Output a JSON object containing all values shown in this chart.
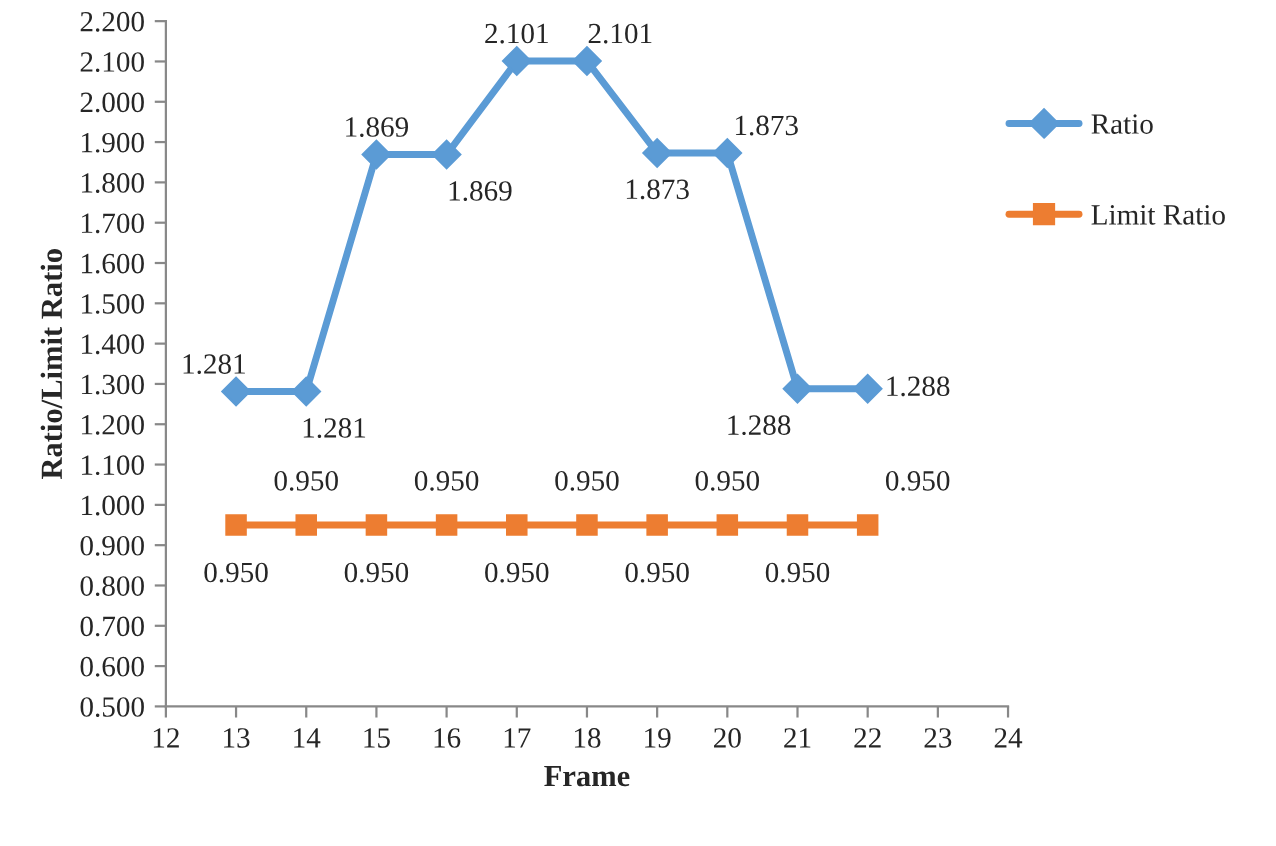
{
  "chart_data": {
    "type": "line",
    "xlabel": "Frame",
    "ylabel": "Ratio/Limit Ratio",
    "x": [
      13,
      14,
      15,
      16,
      17,
      18,
      19,
      20,
      21,
      22
    ],
    "series": [
      {
        "name": "Ratio",
        "color": "#5b9bd5",
        "marker": "diamond",
        "values": [
          1.281,
          1.281,
          1.869,
          1.869,
          2.101,
          2.101,
          1.873,
          1.873,
          1.288,
          1.288
        ],
        "value_labels": [
          "1.281",
          "1.281",
          "1.869",
          "1.869",
          "2.101",
          "2.101",
          "1.873",
          "1.873",
          "1.288",
          "1.288"
        ]
      },
      {
        "name": "Limit Ratio",
        "color": "#ed7d31",
        "marker": "square",
        "values": [
          0.95,
          0.95,
          0.95,
          0.95,
          0.95,
          0.95,
          0.95,
          0.95,
          0.95,
          0.95
        ],
        "value_labels": [
          "0.950",
          "0.950",
          "0.950",
          "0.950",
          "0.950",
          "0.950",
          "0.950",
          "0.950",
          "0.950",
          "0.950"
        ]
      }
    ],
    "xlim": [
      12,
      24
    ],
    "xticks": [
      12,
      13,
      14,
      15,
      16,
      17,
      18,
      19,
      20,
      21,
      22,
      23,
      24
    ],
    "ylim": [
      0.5,
      2.2
    ],
    "yticks": [
      {
        "value": 0.5,
        "label": "0.500"
      },
      {
        "value": 0.6,
        "label": "0.600"
      },
      {
        "value": 0.7,
        "label": "0.700"
      },
      {
        "value": 0.8,
        "label": "0.800"
      },
      {
        "value": 0.9,
        "label": "0.900"
      },
      {
        "value": 1.0,
        "label": "1.000"
      },
      {
        "value": 1.1,
        "label": "1.100"
      },
      {
        "value": 1.2,
        "label": "1.200"
      },
      {
        "value": 1.3,
        "label": "1.300"
      },
      {
        "value": 1.4,
        "label": "1.400"
      },
      {
        "value": 1.5,
        "label": "1.500"
      },
      {
        "value": 1.6,
        "label": "1.600"
      },
      {
        "value": 1.7,
        "label": "1.700"
      },
      {
        "value": 1.8,
        "label": "1.800"
      },
      {
        "value": 1.9,
        "label": "1.900"
      },
      {
        "value": 2.0,
        "label": "2.000"
      },
      {
        "value": 2.1,
        "label": "2.100"
      },
      {
        "value": 2.2,
        "label": "2.200"
      }
    ],
    "grid": false,
    "legend": "right"
  }
}
